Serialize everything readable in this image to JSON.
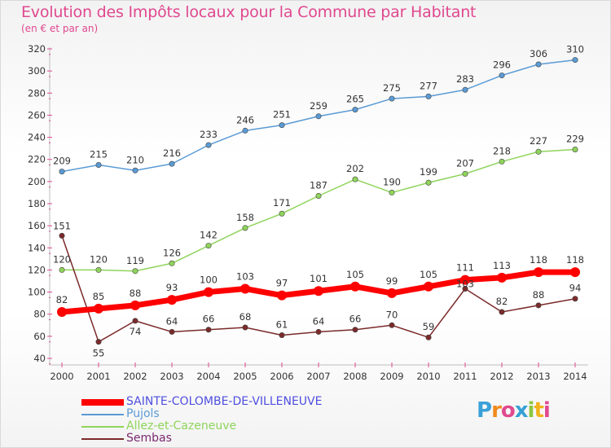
{
  "page": {
    "title": "Evolution des Impôts locaux pour la Commune par Habitant",
    "subtitle": "(en € et par an)"
  },
  "logo": {
    "text": "Proxiti",
    "letters": [
      {
        "ch": "P",
        "color": "#3aa0d8"
      },
      {
        "ch": "r",
        "color": "#f08a1c"
      },
      {
        "ch": "o",
        "color": "#e04a8f"
      },
      {
        "ch": "x",
        "color": "#36a0d5"
      },
      {
        "ch": "i",
        "color": "#8cc63f"
      },
      {
        "ch": "t",
        "color": "#f2b21b"
      },
      {
        "ch": "i",
        "color": "#e0488f"
      }
    ]
  },
  "chart_data": {
    "type": "line",
    "title": "Evolution des Impôts locaux pour la Commune par Habitant",
    "subtitle": "(en € et par an)",
    "xlabel": "",
    "ylabel": "",
    "x": [
      "2000",
      "2001",
      "2002",
      "2003",
      "2004",
      "2005",
      "2006",
      "2007",
      "2008",
      "2009",
      "2010",
      "2011",
      "2012",
      "2013",
      "2014"
    ],
    "ylim": [
      40,
      320
    ],
    "ytick_step": 20,
    "grid": false,
    "legend_position": "bottom-left",
    "series": [
      {
        "name": "SAINTE-COLOMBE-DE-VILLENEUVE",
        "color": "#ff0000",
        "style": "thick",
        "values": [
          82,
          85,
          88,
          93,
          100,
          103,
          97,
          101,
          105,
          99,
          105,
          111,
          113,
          118,
          118
        ]
      },
      {
        "name": "Pujols",
        "color": "#5b9bd5",
        "style": "thin",
        "values": [
          209,
          215,
          210,
          216,
          233,
          246,
          251,
          259,
          265,
          275,
          277,
          283,
          296,
          306,
          310
        ]
      },
      {
        "name": "Allez-et-Cazeneuve",
        "color": "#8fd45b",
        "style": "thin",
        "values": [
          120,
          120,
          119,
          126,
          142,
          158,
          171,
          187,
          202,
          190,
          199,
          207,
          218,
          227,
          229
        ]
      },
      {
        "name": "Sembas",
        "color": "#7b2a2a",
        "style": "thin",
        "values": [
          151,
          55,
          74,
          64,
          66,
          68,
          61,
          64,
          66,
          70,
          59,
          103,
          82,
          88,
          94
        ]
      }
    ]
  }
}
